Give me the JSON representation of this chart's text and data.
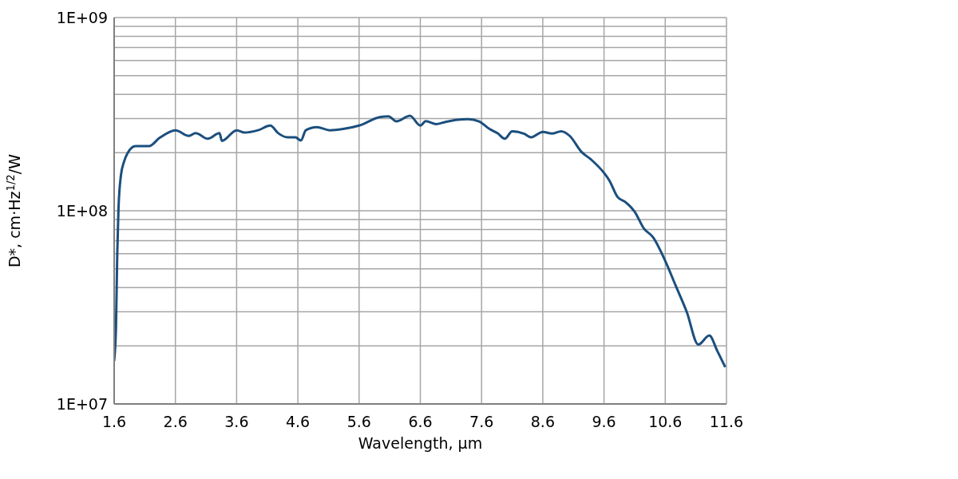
{
  "chart_data": {
    "type": "line",
    "xlabel": "Wavelength, µm",
    "ylabel": "D*, cm·Hz$^{1/2}$/W",
    "log": "y",
    "grid": true,
    "legend": false,
    "marker": "none",
    "line_style": "solid",
    "xlim": [
      1.6,
      11.6
    ],
    "xticks": [
      1.6,
      2.6,
      3.6,
      4.6,
      5.6,
      6.6,
      7.6,
      8.6,
      9.6,
      10.6,
      11.6
    ],
    "ylim": [
      10000000,
      1000000000
    ],
    "yticks": [
      {
        "value": 10000000,
        "label": "1E+07"
      },
      {
        "value": 20000000,
        "label": null
      },
      {
        "value": 30000000,
        "label": null
      },
      {
        "value": 40000000,
        "label": null
      },
      {
        "value": 50000000,
        "label": null
      },
      {
        "value": 60000000,
        "label": null
      },
      {
        "value": 70000000,
        "label": null
      },
      {
        "value": 80000000,
        "label": null
      },
      {
        "value": 90000000,
        "label": null
      },
      {
        "value": 100000000,
        "label": "1E+08"
      },
      {
        "value": 200000000,
        "label": null
      },
      {
        "value": 300000000,
        "label": null
      },
      {
        "value": 400000000,
        "label": null
      },
      {
        "value": 500000000,
        "label": null
      },
      {
        "value": 600000000,
        "label": null
      },
      {
        "value": 700000000,
        "label": null
      },
      {
        "value": 800000000,
        "label": null
      },
      {
        "value": 900000000,
        "label": null
      },
      {
        "value": 1000000000,
        "label": "1E+09"
      }
    ],
    "x": [
      1.6,
      1.63,
      1.65,
      1.67,
      1.71,
      1.76,
      1.82,
      1.95,
      2.17,
      2.34,
      2.6,
      2.82,
      2.93,
      3.13,
      3.32,
      3.36,
      3.6,
      3.73,
      3.95,
      4.15,
      4.28,
      4.43,
      4.56,
      4.65,
      4.73,
      4.91,
      5.12,
      5.34,
      5.6,
      5.95,
      6.08,
      6.21,
      6.43,
      6.6,
      6.69,
      6.86,
      6.99,
      7.21,
      7.38,
      7.56,
      7.73,
      7.86,
      7.98,
      8.1,
      8.3,
      8.41,
      8.6,
      8.75,
      8.9,
      9.04,
      9.23,
      9.39,
      9.6,
      9.69,
      9.82,
      9.95,
      10.1,
      10.25,
      10.4,
      10.6,
      10.77,
      10.95,
      11.14,
      11.32,
      11.45,
      11.58
    ],
    "series": [
      {
        "color": "#1b4f7e",
        "values": [
          16700000,
          25000000,
          59000000,
          101000000,
          152000000,
          179000000,
          199000000,
          216000000,
          216000000,
          238000000,
          261000000,
          244000000,
          252000000,
          236000000,
          252000000,
          230000000,
          261000000,
          254000000,
          261000000,
          276000000,
          252000000,
          240000000,
          240000000,
          231000000,
          261000000,
          271000000,
          261000000,
          265000000,
          276000000,
          306000000,
          308000000,
          290000000,
          310000000,
          276000000,
          291000000,
          281000000,
          287000000,
          296000000,
          298000000,
          290000000,
          265000000,
          252000000,
          236000000,
          258000000,
          250000000,
          240000000,
          256000000,
          251000000,
          258000000,
          244000000,
          202000000,
          184000000,
          157000000,
          143000000,
          118000000,
          111000000,
          99000000,
          81000000,
          73000000,
          55000000,
          41000000,
          30000000,
          20300000,
          22600000,
          18800000,
          15500000
        ]
      }
    ]
  }
}
